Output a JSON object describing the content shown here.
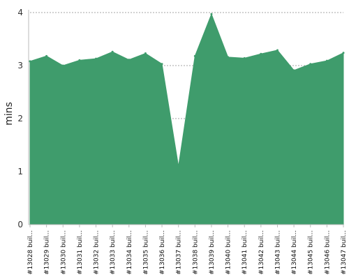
{
  "chart_data": {
    "type": "area",
    "title": "",
    "xlabel": "",
    "ylabel": "mins",
    "ylim": [
      0,
      4
    ],
    "yticks": [
      0,
      1,
      2,
      3,
      4
    ],
    "grid": "horizontal dashed",
    "legend": "none",
    "categories": [
      "#13028 buil...",
      "#13029 buil...",
      "#13030 buil...",
      "#13031 buil...",
      "#13032 buil...",
      "#13033 buil...",
      "#13034 buil...",
      "#13035 buil...",
      "#13036 buil...",
      "#13037 buil...",
      "#13038 buil...",
      "#13039 buil...",
      "#13040 buil...",
      "#13041 buil...",
      "#13042 buil...",
      "#13043 buil...",
      "#13044 buil...",
      "#13045 buil...",
      "#13046 buil...",
      "#13047 buil..."
    ],
    "series": [
      {
        "values": [
          3.08,
          3.18,
          3.0,
          3.1,
          3.13,
          3.26,
          3.11,
          3.23,
          3.03,
          1.1,
          3.18,
          3.97,
          3.16,
          3.14,
          3.22,
          3.29,
          2.91,
          3.03,
          3.09,
          3.24
        ]
      }
    ],
    "colors": {
      "area": "#3f9c6c",
      "grid": "#888888",
      "axis": "#bbbbbb"
    }
  }
}
